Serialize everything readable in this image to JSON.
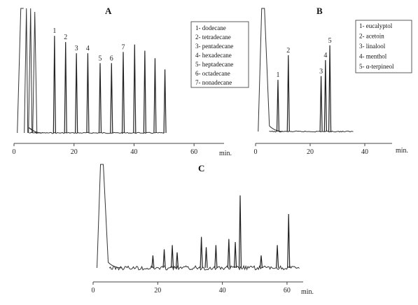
{
  "chart_data": [
    {
      "type": "line",
      "panel": "A",
      "x_unit": "min.",
      "xlim": [
        0,
        70
      ],
      "x_ticks": [
        0,
        20,
        40,
        60
      ],
      "legend": [
        "1- dodecane",
        "2- tetradecane",
        "3- pentadecane",
        "4- hexadecane",
        "5- heptadecane",
        "6- octadecane",
        "7- nonadecane"
      ],
      "legend_position": "top-right",
      "peaks": [
        {
          "label": "1",
          "x": 13.5,
          "height": 0.78
        },
        {
          "label": "2",
          "x": 17.2,
          "height": 0.73
        },
        {
          "label": "3",
          "x": 20.8,
          "height": 0.64
        },
        {
          "label": "4",
          "x": 24.6,
          "height": 0.64
        },
        {
          "label": "5",
          "x": 28.7,
          "height": 0.56
        },
        {
          "label": "6",
          "x": 32.5,
          "height": 0.56
        },
        {
          "label": "7",
          "x": 36.4,
          "height": 0.65
        },
        {
          "label": "",
          "x": 40.2,
          "height": 0.71
        },
        {
          "label": "",
          "x": 43.6,
          "height": 0.66
        },
        {
          "label": "",
          "x": 47.0,
          "height": 0.6
        },
        {
          "label": "",
          "x": 50.3,
          "height": 0.51
        }
      ]
    },
    {
      "type": "line",
      "panel": "B",
      "x_unit": "min.",
      "xlim": [
        0,
        50
      ],
      "x_ticks": [
        0,
        20,
        40
      ],
      "legend": [
        "1- eucalyptol",
        "2- acetoin",
        "3- linalool",
        "4- menthol",
        "5- α-terpineol"
      ],
      "legend_position": "top-right",
      "peaks": [
        {
          "label": "1",
          "x": 8.2,
          "height": 0.42
        },
        {
          "label": "2",
          "x": 12.0,
          "height": 0.62
        },
        {
          "label": "3",
          "x": 24.0,
          "height": 0.45
        },
        {
          "label": "4",
          "x": 25.6,
          "height": 0.58
        },
        {
          "label": "5",
          "x": 27.2,
          "height": 0.7
        }
      ]
    },
    {
      "type": "line",
      "panel": "C",
      "x_unit": "min.",
      "xlim": [
        0,
        65
      ],
      "x_ticks": [
        0,
        20,
        40,
        60
      ],
      "peaks": [
        {
          "label": "",
          "x": 18.5,
          "height": 0.12
        },
        {
          "label": "",
          "x": 22.0,
          "height": 0.18
        },
        {
          "label": "",
          "x": 24.5,
          "height": 0.22
        },
        {
          "label": "",
          "x": 26.0,
          "height": 0.15
        },
        {
          "label": "",
          "x": 33.5,
          "height": 0.3
        },
        {
          "label": "",
          "x": 35.0,
          "height": 0.2
        },
        {
          "label": "",
          "x": 38.0,
          "height": 0.22
        },
        {
          "label": "",
          "x": 42.0,
          "height": 0.28
        },
        {
          "label": "",
          "x": 44.0,
          "height": 0.25
        },
        {
          "label": "",
          "x": 45.5,
          "height": 0.7
        },
        {
          "label": "",
          "x": 52.0,
          "height": 0.12
        },
        {
          "label": "",
          "x": 57.0,
          "height": 0.22
        },
        {
          "label": "",
          "x": 60.5,
          "height": 0.52
        }
      ]
    }
  ]
}
